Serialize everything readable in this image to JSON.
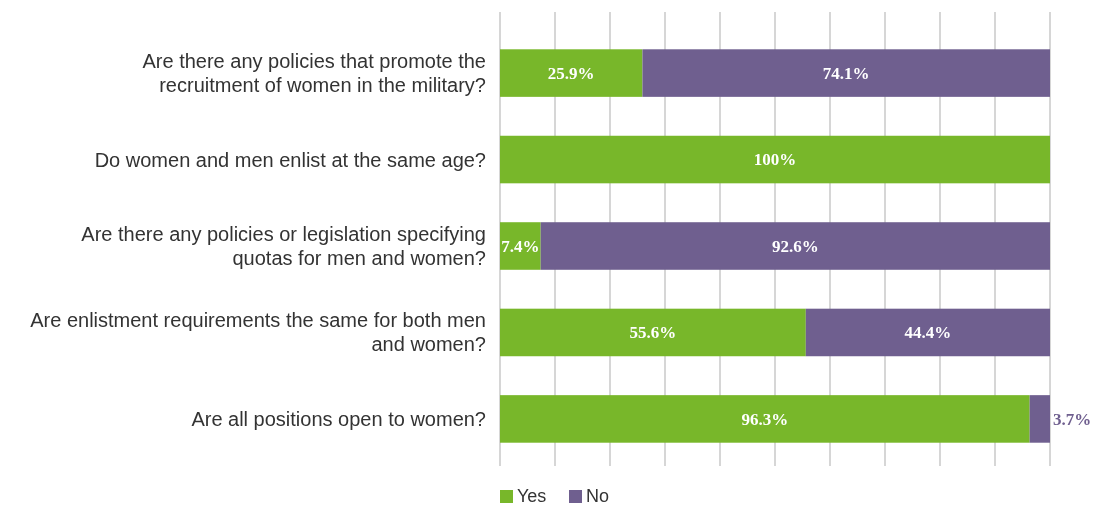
{
  "chart_data": {
    "type": "bar",
    "orientation": "horizontal",
    "stacked": true,
    "categories": [
      "Are there any policies that promote the recruitment of women in the military?",
      "Do women and men enlist at the same age?",
      "Are there any policies or legislation specifying quotas for men and women?",
      "Are enlistment requirements the same for both men and women?",
      "Are all positions open to women?"
    ],
    "series": [
      {
        "name": "Yes",
        "color": "#78b72a",
        "values": [
          25.9,
          100,
          7.4,
          55.6,
          96.3
        ],
        "value_labels": [
          "25.9%",
          "100%",
          "7.4%",
          "55.6%",
          "96.3%"
        ]
      },
      {
        "name": "No",
        "color": "#6f5f8f",
        "values": [
          74.1,
          null,
          92.6,
          44.4,
          3.7
        ],
        "value_labels": [
          "74.1%",
          null,
          "92.6%",
          "44.4%",
          "3.7%"
        ]
      }
    ],
    "xlim": [
      0,
      100
    ],
    "xticks": [
      {
        "value": 0,
        "label": null
      },
      {
        "value": 10,
        "label": null
      },
      {
        "value": 20,
        "label": null
      },
      {
        "value": 30,
        "label": null
      },
      {
        "value": 40,
        "label": null
      },
      {
        "value": 50,
        "label": null
      },
      {
        "value": 60,
        "label": null
      },
      {
        "value": 70,
        "label": null
      },
      {
        "value": 80,
        "label": null
      },
      {
        "value": 90,
        "label": null
      },
      {
        "value": 100,
        "label": null
      }
    ],
    "grid": "x",
    "tick_labels": "y",
    "legend": "bottom"
  }
}
